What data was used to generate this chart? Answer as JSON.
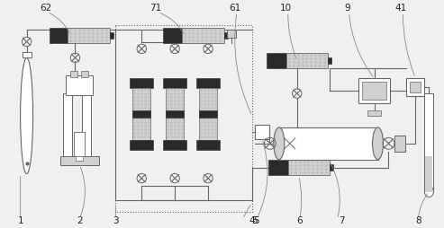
{
  "bg_color": "#f0f0f0",
  "line_color": "#666666",
  "dark_color": "#2a2a2a",
  "gray_color": "#aaaaaa",
  "light_gray": "#d0d0d0",
  "dot_gray": "#b0b0b0",
  "white": "#ffffff",
  "label_color": "#222222"
}
